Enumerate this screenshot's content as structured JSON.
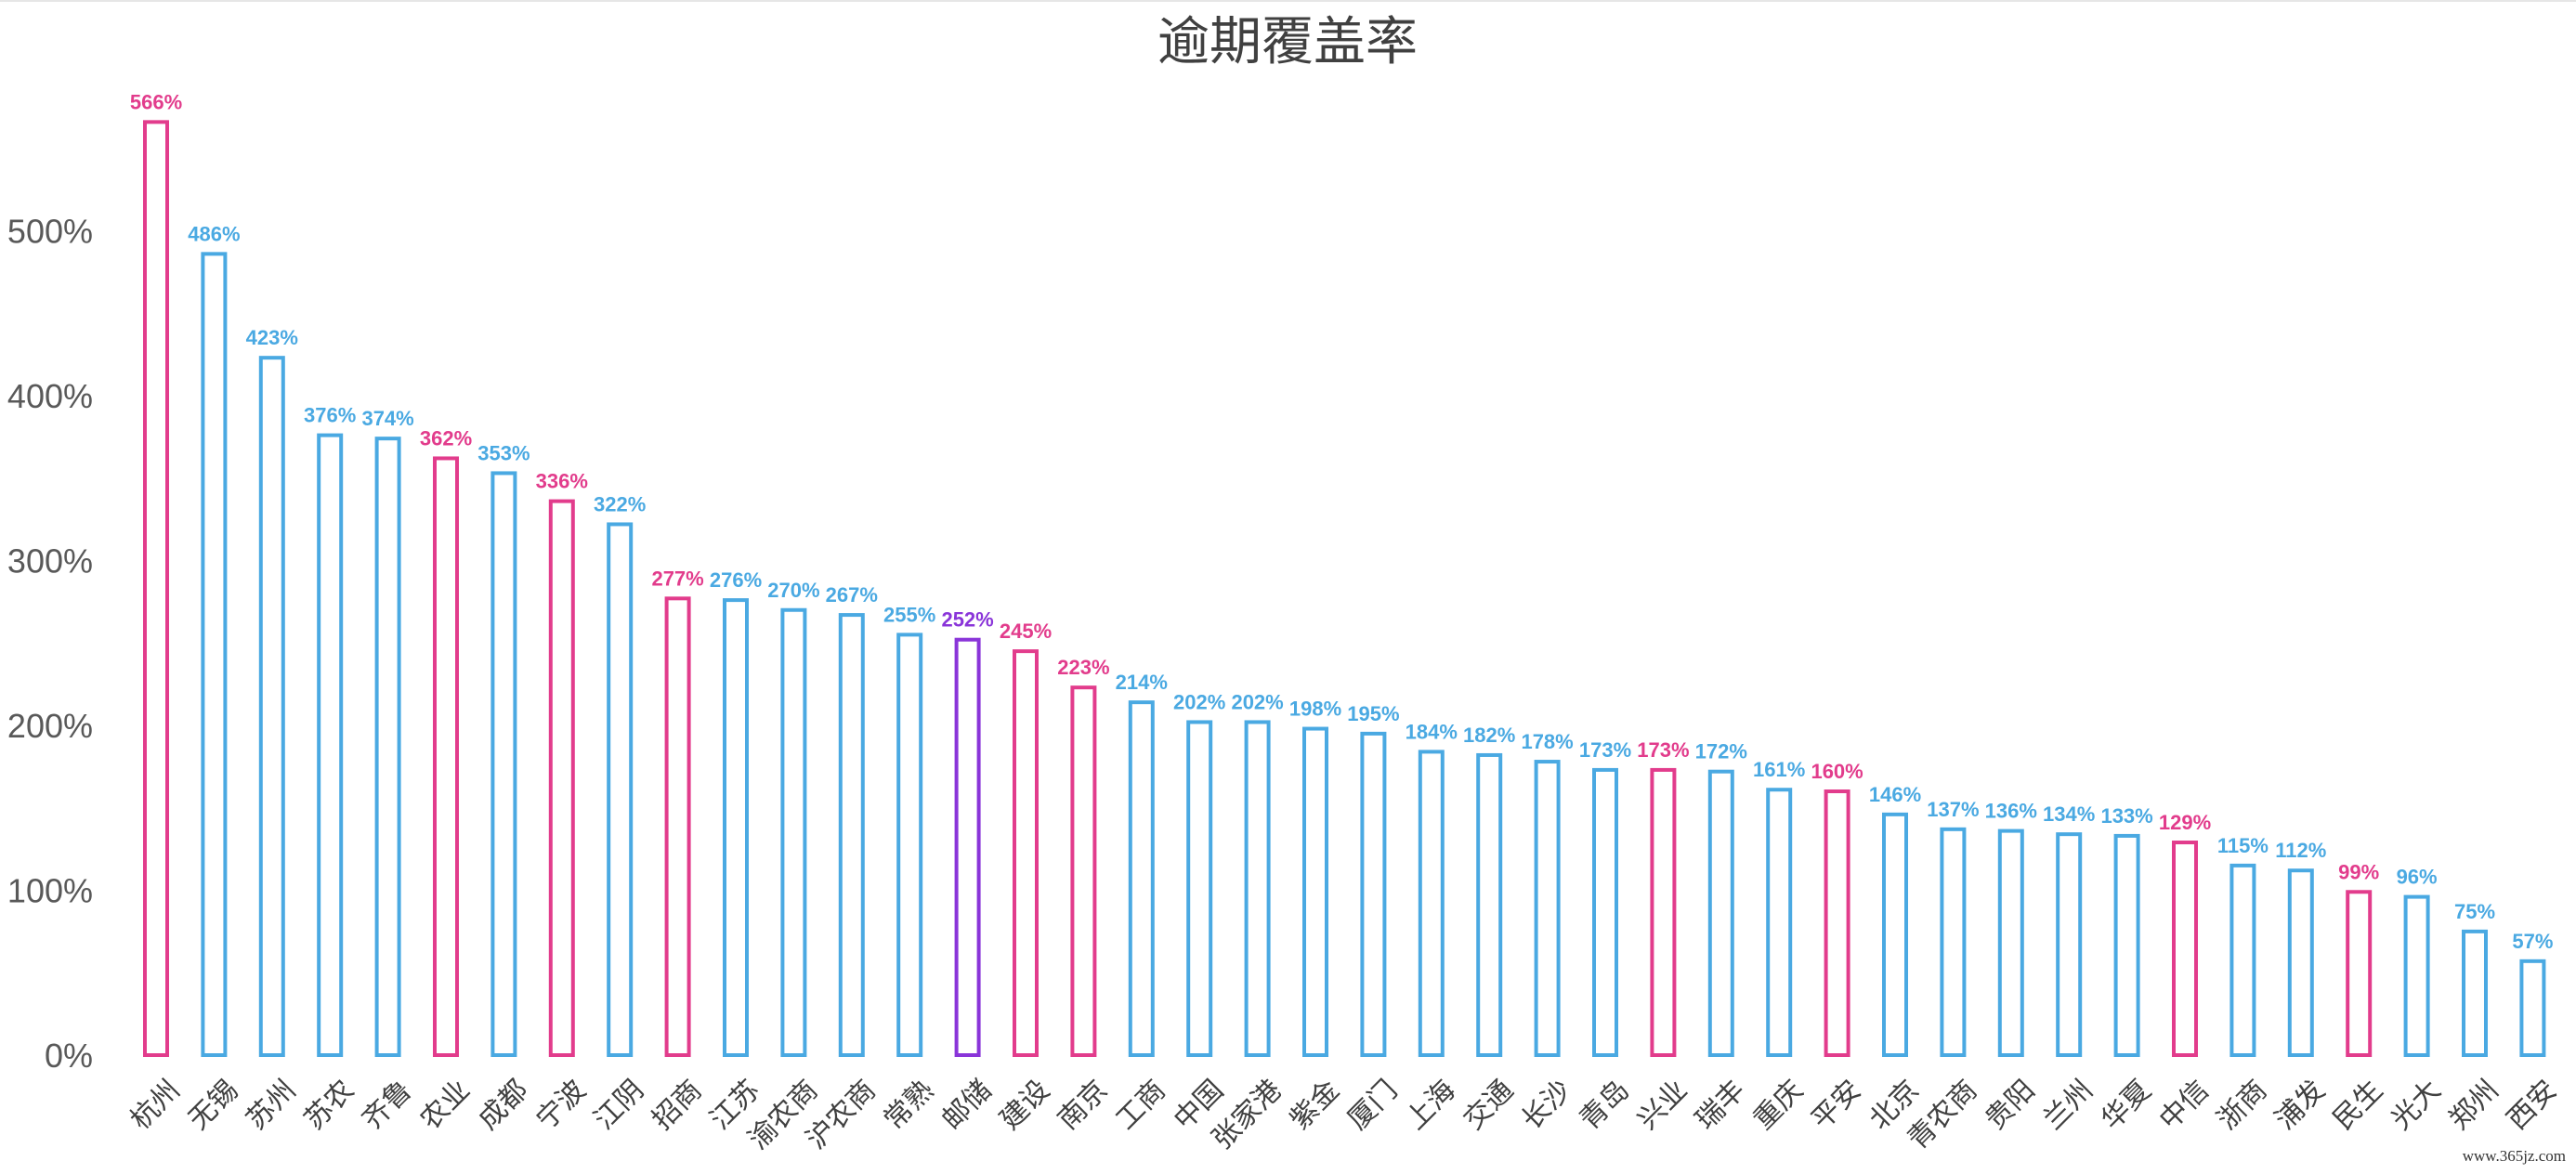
{
  "colors": {
    "default": "#4aa9e2",
    "highlight": "#e23c8c",
    "special": "#8a35d9"
  },
  "chart_data": {
    "type": "bar",
    "title": "逾期覆盖率",
    "xlabel": "",
    "ylabel": "",
    "ylim": [
      0,
      570
    ],
    "yticks": [
      {
        "value": 0,
        "label": "0%"
      },
      {
        "value": 100,
        "label": "100%"
      },
      {
        "value": 200,
        "label": "200%"
      },
      {
        "value": 300,
        "label": "300%"
      },
      {
        "value": 400,
        "label": "400%"
      },
      {
        "value": 500,
        "label": "500%"
      }
    ],
    "grid": false,
    "legend": "none",
    "bar_style": "outline",
    "categories": [
      "杭州",
      "无锡",
      "苏州",
      "苏农",
      "齐鲁",
      "农业",
      "成都",
      "宁波",
      "江阴",
      "招商",
      "江苏",
      "渝农商",
      "沪农商",
      "常熟",
      "邮储",
      "建设",
      "南京",
      "工商",
      "中国",
      "张家港",
      "紫金",
      "厦门",
      "上海",
      "交通",
      "长沙",
      "青岛",
      "兴业",
      "瑞丰",
      "重庆",
      "平安",
      "北京",
      "青农商",
      "贵阳",
      "兰州",
      "华夏",
      "中信",
      "浙商",
      "浦发",
      "民生",
      "光大",
      "郑州",
      "西安"
    ],
    "values": [
      566,
      486,
      423,
      376,
      374,
      362,
      353,
      336,
      322,
      277,
      276,
      270,
      267,
      255,
      252,
      245,
      223,
      214,
      202,
      202,
      198,
      195,
      184,
      182,
      178,
      173,
      173,
      172,
      161,
      160,
      146,
      137,
      136,
      134,
      133,
      129,
      115,
      112,
      99,
      96,
      75,
      57
    ],
    "value_labels": [
      "566%",
      "486%",
      "423%",
      "376%",
      "374%",
      "362%",
      "353%",
      "336%",
      "322%",
      "277%",
      "276%",
      "270%",
      "267%",
      "255%",
      "252%",
      "245%",
      "223%",
      "214%",
      "202%",
      "202%",
      "198%",
      "195%",
      "184%",
      "182%",
      "178%",
      "173%",
      "173%",
      "172%",
      "161%",
      "160%",
      "146%",
      "137%",
      "136%",
      "134%",
      "133%",
      "129%",
      "115%",
      "112%",
      "99%",
      "96%",
      "75%",
      "57%"
    ],
    "bar_colors": [
      "highlight",
      "default",
      "default",
      "default",
      "default",
      "highlight",
      "default",
      "highlight",
      "default",
      "highlight",
      "default",
      "default",
      "default",
      "default",
      "special",
      "highlight",
      "highlight",
      "default",
      "default",
      "default",
      "default",
      "default",
      "default",
      "default",
      "default",
      "default",
      "highlight",
      "default",
      "default",
      "highlight",
      "default",
      "default",
      "default",
      "default",
      "default",
      "highlight",
      "default",
      "default",
      "highlight",
      "default",
      "default",
      "default"
    ]
  },
  "watermark": "www.365jz.com"
}
